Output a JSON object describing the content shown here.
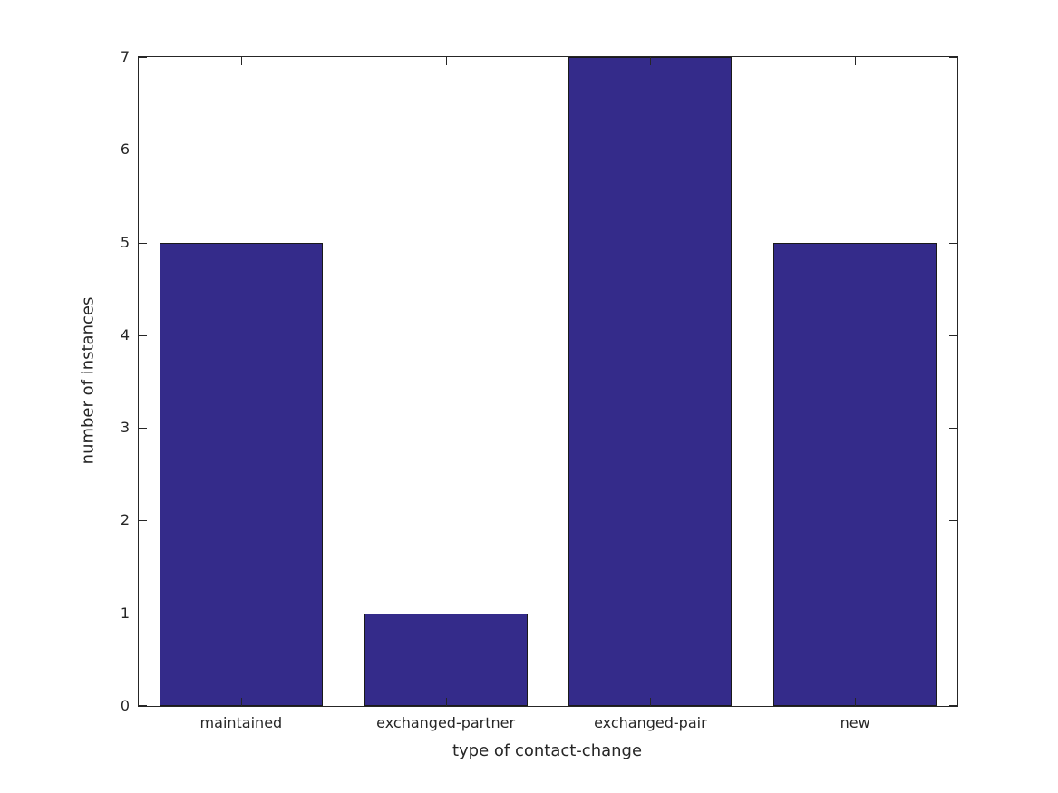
{
  "chart_data": {
    "type": "bar",
    "categories": [
      "maintained",
      "exchanged-partner",
      "exchanged-pair",
      "new"
    ],
    "values": [
      5,
      1,
      7,
      5
    ],
    "title": "",
    "xlabel": "type of contact-change",
    "ylabel": "number of instances",
    "ylim": [
      0,
      7
    ],
    "yticks": [
      0,
      1,
      2,
      3,
      4,
      5,
      6,
      7
    ],
    "ytick_labels": [
      "0",
      "1",
      "2",
      "3",
      "4",
      "5",
      "6",
      "7"
    ],
    "bar_color": "#342b8a",
    "bar_edge_color": "#1a1a1a",
    "axis_color": "#262626",
    "background_color": "#ffffff",
    "grid": false,
    "legend": null,
    "ticks_direction": "in",
    "ticks_on_all_spines": true
  }
}
